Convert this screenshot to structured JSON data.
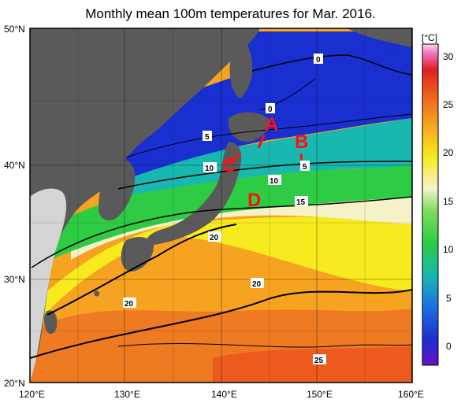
{
  "title": "Monthly mean 100m temperatures for Mar. 2016.",
  "map": {
    "lat_labels": [
      "50°N",
      "40°N",
      "30°N",
      "20°N"
    ],
    "lon_labels": [
      "120°E",
      "130°E",
      "140°E",
      "150°E",
      "160°E"
    ],
    "region_labels": [
      "A",
      "B",
      "C",
      "D"
    ],
    "contour_labels": [
      "0",
      "0",
      "5",
      "5",
      "10",
      "10",
      "15",
      "20",
      "20",
      "20",
      "25"
    ]
  },
  "colorbar": {
    "unit": "[°C]",
    "ticks": [
      "30",
      "25",
      "20",
      "15",
      "10",
      "5",
      "0"
    ]
  },
  "colors": {
    "land": "#5a5a5a",
    "land_light": "#d4d4d4",
    "cold": "#1a2fd0",
    "cyan": "#18b7b0",
    "green": "#2ecc44",
    "light": "#f5f2c8",
    "yellow": "#f7ea1e",
    "orange": "#f5a321",
    "red_orange": "#ec5a1e",
    "accent_red": "#ff1010"
  }
}
